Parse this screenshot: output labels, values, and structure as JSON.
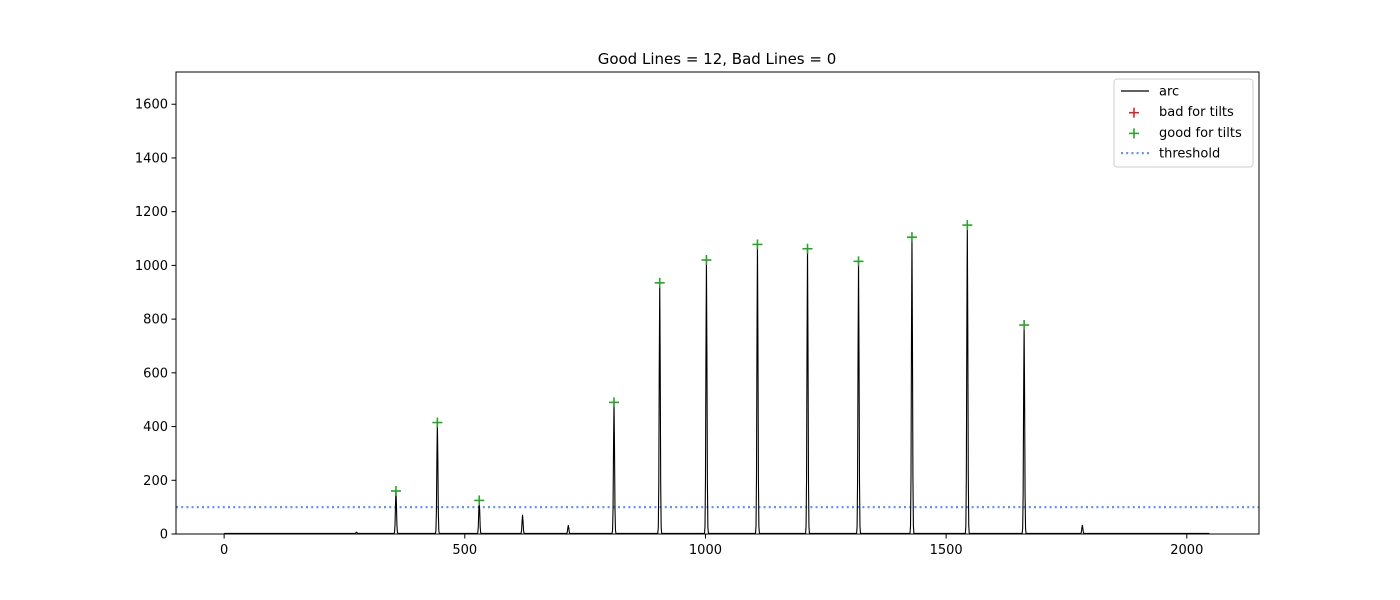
{
  "chart_data": {
    "type": "line",
    "title": "Good Lines = 12,  Bad Lines = 0",
    "xlabel": "",
    "ylabel": "",
    "xlim": [
      -100,
      2150
    ],
    "ylim": [
      0,
      1720
    ],
    "x_ticks": [
      0,
      500,
      1000,
      1500,
      2000
    ],
    "y_ticks": [
      0,
      200,
      400,
      600,
      800,
      1000,
      1200,
      1400,
      1600
    ],
    "grid": false,
    "legend_position": "top-right",
    "legend": [
      {
        "label": "arc",
        "kind": "line",
        "color": "#000000"
      },
      {
        "label": "bad for tilts",
        "kind": "plus",
        "color": "#d62728"
      },
      {
        "label": "good for tilts",
        "kind": "plus",
        "color": "#2ca02c"
      },
      {
        "label": "threshold",
        "kind": "dotted",
        "color": "#6495ed"
      }
    ],
    "arc": {
      "x_range": [
        0,
        2047
      ],
      "baseline": 2,
      "peaks": [
        {
          "x": 275,
          "y": 5
        },
        {
          "x": 357,
          "y": 160
        },
        {
          "x": 443,
          "y": 415
        },
        {
          "x": 530,
          "y": 125
        },
        {
          "x": 620,
          "y": 68
        },
        {
          "x": 715,
          "y": 30
        },
        {
          "x": 810,
          "y": 490
        },
        {
          "x": 905,
          "y": 935
        },
        {
          "x": 1002,
          "y": 1020
        },
        {
          "x": 1108,
          "y": 1078
        },
        {
          "x": 1212,
          "y": 1062
        },
        {
          "x": 1318,
          "y": 1015
        },
        {
          "x": 1429,
          "y": 1105
        },
        {
          "x": 1544,
          "y": 1150
        },
        {
          "x": 1662,
          "y": 778
        },
        {
          "x": 1783,
          "y": 30
        }
      ]
    },
    "good_for_tilts": [
      {
        "x": 357,
        "y": 160
      },
      {
        "x": 443,
        "y": 415
      },
      {
        "x": 530,
        "y": 125
      },
      {
        "x": 810,
        "y": 490
      },
      {
        "x": 905,
        "y": 935
      },
      {
        "x": 1002,
        "y": 1020
      },
      {
        "x": 1108,
        "y": 1078
      },
      {
        "x": 1212,
        "y": 1062
      },
      {
        "x": 1318,
        "y": 1015
      },
      {
        "x": 1429,
        "y": 1105
      },
      {
        "x": 1544,
        "y": 1150
      },
      {
        "x": 1662,
        "y": 778
      }
    ],
    "bad_for_tilts": [],
    "threshold": 100,
    "colors": {
      "arc": "#000000",
      "good": "#2ca02c",
      "bad": "#d62728",
      "threshold": "#6495ed"
    }
  }
}
